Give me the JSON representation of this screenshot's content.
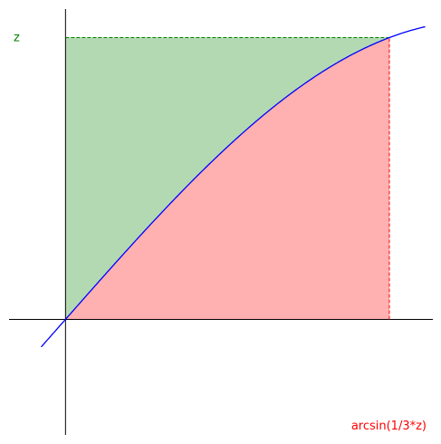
{
  "chart_data": {
    "type": "area",
    "title": "",
    "y_label": "z",
    "x_label": "arcsin(1/3*z)",
    "function": "sin",
    "point": {
      "x": 1.2309594173407747,
      "y": 0.9428090415820634
    },
    "xlim": [
      -0.2146,
      1.3963
    ],
    "ylim": [
      -0.3868,
      1.0384
    ],
    "curve": {
      "x_start": -0.0924,
      "x_end": 1.367
    },
    "grid": false,
    "colors": {
      "curve": "#0000ff",
      "area_below": "#ffb0b0",
      "area_above": "#b3d9b3",
      "x_marker": "#ff0000",
      "y_marker": "#008000",
      "axes": "#000000"
    }
  }
}
